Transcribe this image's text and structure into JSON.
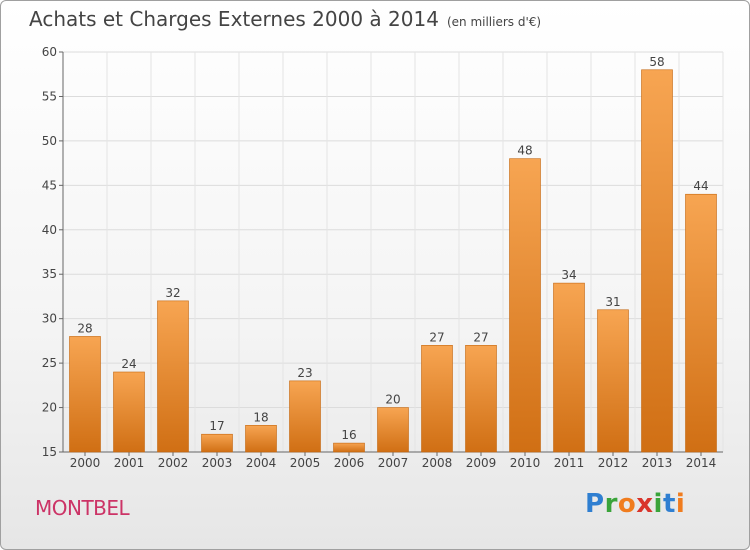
{
  "header": {
    "title": "Achats et Charges Externes 2000 à 2014",
    "subtitle": "(en milliers d'€)"
  },
  "commune": {
    "name": "MONTBEL"
  },
  "logo": {
    "text": "Proxiti",
    "letters": [
      {
        "ch": "P",
        "color": "#2f7fd1"
      },
      {
        "ch": "r",
        "color": "#3aa43a"
      },
      {
        "ch": "o",
        "color": "#f07c1e"
      },
      {
        "ch": "x",
        "color": "#d9342b"
      },
      {
        "ch": "i",
        "color": "#3aa43a"
      },
      {
        "ch": "t",
        "color": "#2f7fd1"
      },
      {
        "ch": "i",
        "color": "#f07c1e"
      }
    ]
  },
  "chart_data": {
    "type": "bar",
    "title": "Achats et Charges Externes 2000 à 2014",
    "subtitle": "(en milliers d'€)",
    "categories": [
      "2000",
      "2001",
      "2002",
      "2003",
      "2004",
      "2005",
      "2006",
      "2007",
      "2008",
      "2009",
      "2010",
      "2011",
      "2012",
      "2013",
      "2014"
    ],
    "values": [
      28,
      24,
      32,
      17,
      18,
      23,
      16,
      20,
      27,
      27,
      48,
      34,
      31,
      58,
      44
    ],
    "ylim": [
      15,
      60
    ],
    "yticks": [
      15,
      20,
      25,
      30,
      35,
      40,
      45,
      50,
      55,
      60
    ],
    "grid": true,
    "bar_color_top": "#f7a552",
    "bar_color_bottom": "#d06f14",
    "text_color": "#444444"
  }
}
